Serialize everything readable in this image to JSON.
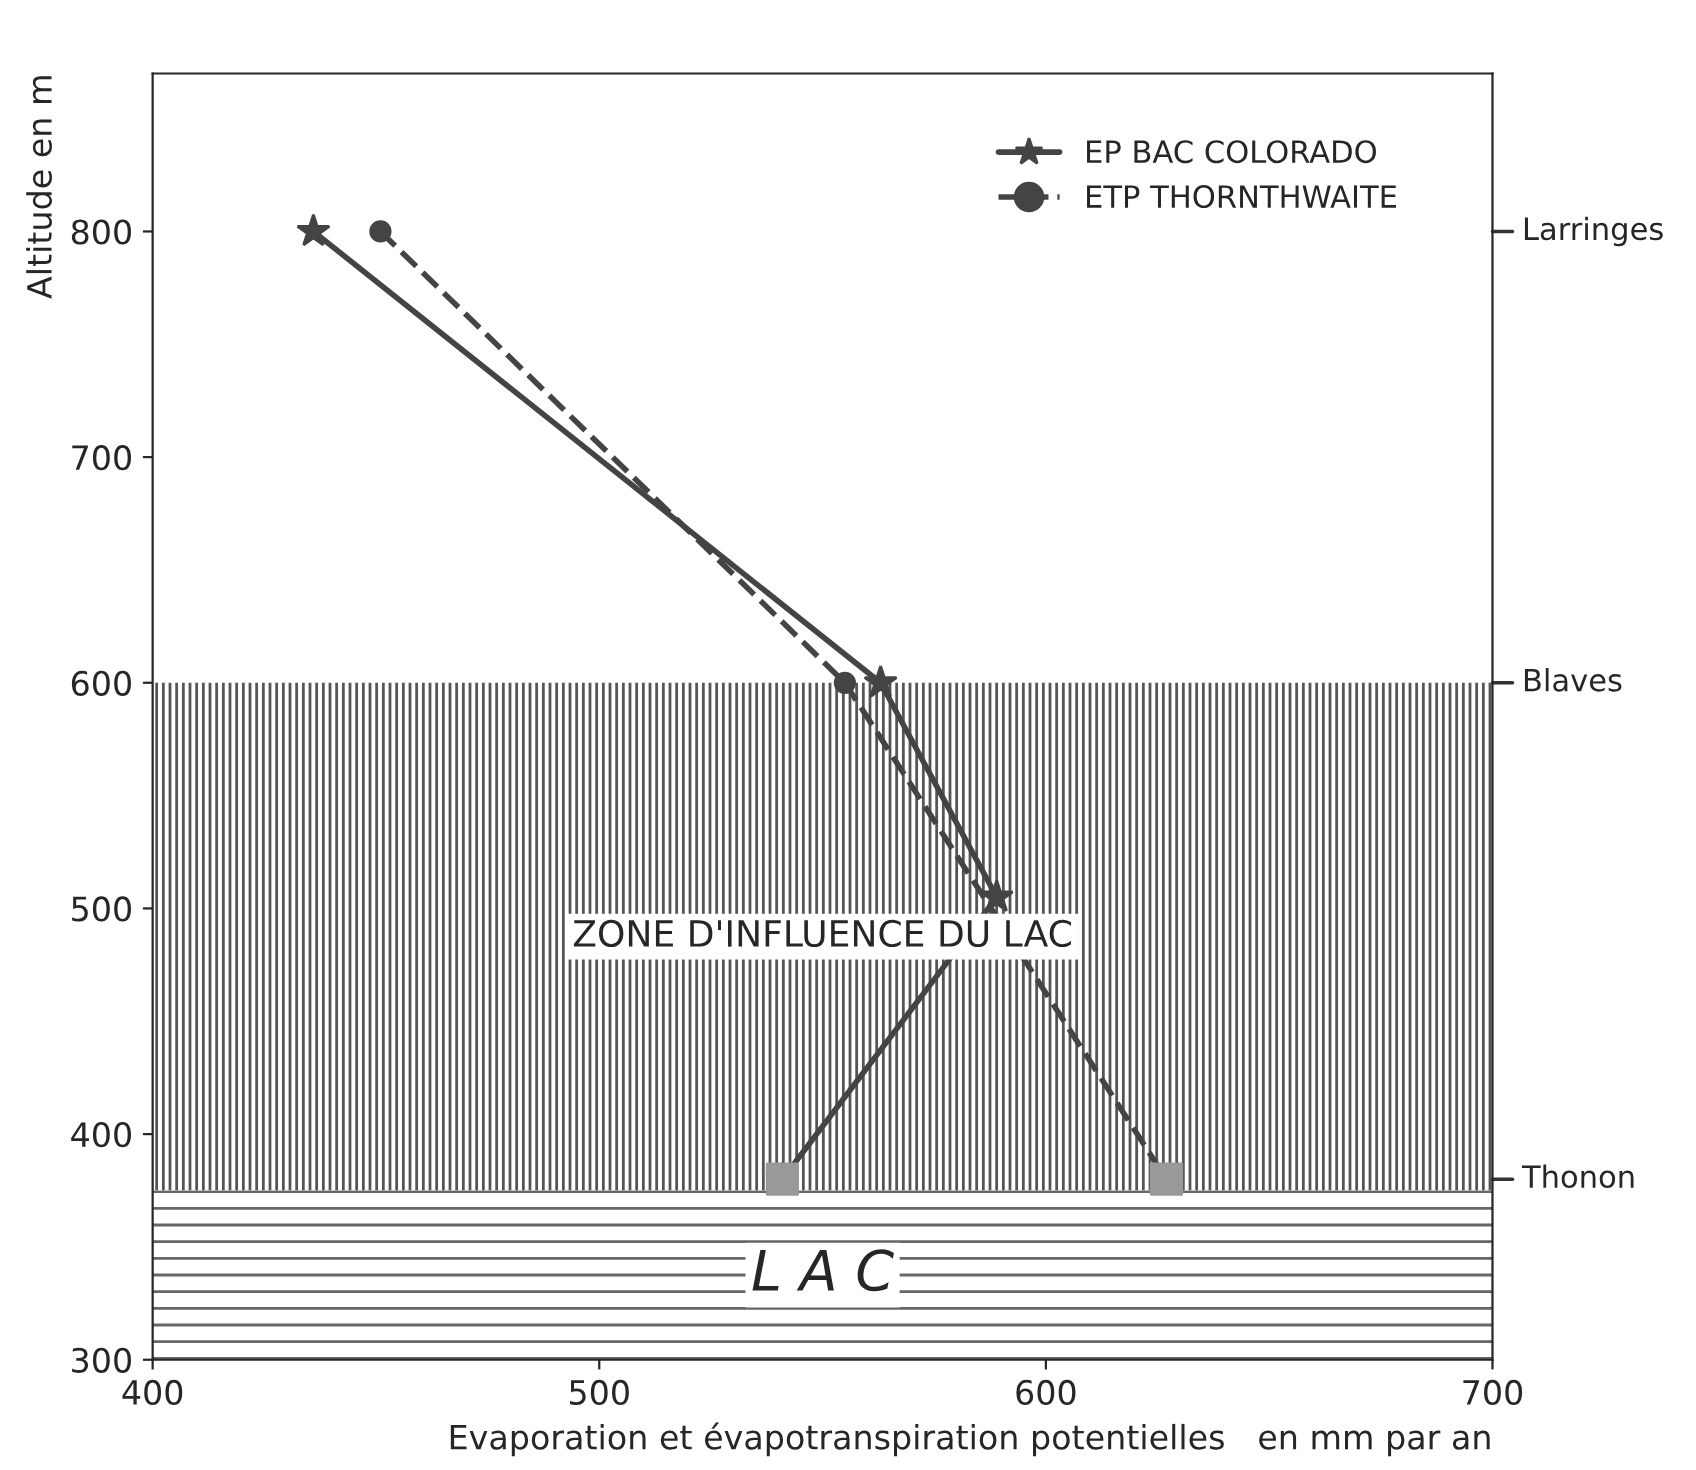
{
  "chart_data": {
    "type": "line",
    "xlabel": "Evaporation et évapotranspiration potentielles   en mm par an",
    "ylabel": "Altitude en m",
    "series": [
      {
        "name": "EP BAC COLORADO",
        "color": "#444444",
        "line_style": "solid",
        "marker": "star",
        "x": [
          436,
          563,
          589,
          541
        ],
        "values": [
          800,
          600,
          505,
          380
        ]
      },
      {
        "name": "ETP THORNTHWAITE",
        "color": "#444444",
        "line_style": "dashed",
        "marker": "circle",
        "x": [
          451,
          555,
          627
        ],
        "values": [
          800,
          600,
          380
        ]
      },
      {
        "type": "scatter",
        "color": "#999999",
        "marker": "square",
        "x": [
          541,
          627
        ],
        "values": [
          380,
          380
        ]
      }
    ],
    "bands": [
      {
        "axis": "y",
        "from": 375,
        "to": 600,
        "label": "ZONE D'INFLUENCE DU LAC",
        "color": "#555555"
      },
      {
        "axis": "y",
        "from": 300,
        "to": 375,
        "label": "L A C",
        "color": "#666666"
      }
    ],
    "xlim": [
      400,
      700
    ],
    "xticks": [
      400,
      500,
      600,
      700
    ],
    "ylim": [
      300,
      870
    ],
    "yticks": [
      300,
      400,
      500,
      600,
      700,
      800
    ],
    "ref_lines": [
      {
        "axis": "y",
        "value": 380,
        "label": "Thonon"
      },
      {
        "axis": "y",
        "value": 600,
        "label": "Blaves"
      },
      {
        "axis": "y",
        "value": 800,
        "label": "Larringes"
      }
    ],
    "grid": false,
    "legend": "top right"
  }
}
